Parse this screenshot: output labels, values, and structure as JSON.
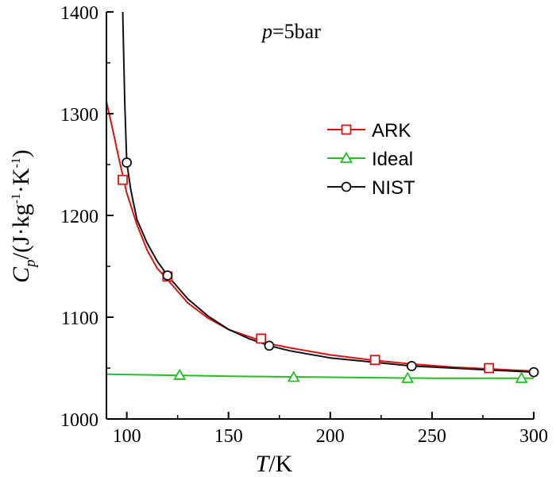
{
  "chart_data": {
    "type": "line",
    "annotation": {
      "italic": "p",
      "rest": "=5bar"
    },
    "xlabel": {
      "italic": "T",
      "rest": "/K"
    },
    "ylabel": {
      "c": "C",
      "sub": "p",
      "open": "/(J·kg",
      "exp1": "-1",
      "mid": "·K",
      "exp2": "-1",
      "close": ")"
    },
    "xlim": [
      90,
      300
    ],
    "ylim": [
      1000,
      1400
    ],
    "xticks": [
      100,
      150,
      200,
      250,
      300
    ],
    "yticks": [
      1000,
      1100,
      1200,
      1300,
      1400
    ],
    "series": [
      {
        "name": "ARK",
        "color": "#e01010",
        "marker": "square",
        "line": [
          [
            90,
            1312
          ],
          [
            93,
            1285
          ],
          [
            96,
            1257
          ],
          [
            100,
            1222
          ],
          [
            105,
            1191
          ],
          [
            110,
            1166
          ],
          [
            115,
            1148
          ],
          [
            120,
            1137
          ],
          [
            130,
            1114
          ],
          [
            140,
            1099
          ],
          [
            150,
            1088
          ],
          [
            160,
            1081
          ],
          [
            170,
            1074
          ],
          [
            180,
            1070
          ],
          [
            200,
            1063
          ],
          [
            220,
            1058
          ],
          [
            240,
            1054
          ],
          [
            260,
            1051
          ],
          [
            280,
            1049
          ],
          [
            300,
            1047
          ]
        ],
        "markers": [
          [
            98,
            1235
          ],
          [
            120,
            1140
          ],
          [
            166,
            1079
          ],
          [
            222,
            1058
          ],
          [
            278,
            1050
          ]
        ]
      },
      {
        "name": "Ideal",
        "color": "#22c022",
        "marker": "triangle",
        "line": [
          [
            90,
            1044
          ],
          [
            150,
            1042
          ],
          [
            200,
            1041
          ],
          [
            250,
            1040
          ],
          [
            300,
            1040
          ]
        ],
        "markers": [
          [
            126,
            1043
          ],
          [
            182,
            1041
          ],
          [
            238,
            1040
          ],
          [
            294,
            1040
          ]
        ]
      },
      {
        "name": "NIST",
        "color": "#111111",
        "marker": "circle",
        "line": [
          [
            98,
            1400
          ],
          [
            99,
            1310
          ],
          [
            100,
            1252
          ],
          [
            102,
            1225
          ],
          [
            105,
            1196
          ],
          [
            110,
            1173
          ],
          [
            115,
            1155
          ],
          [
            120,
            1141
          ],
          [
            130,
            1118
          ],
          [
            140,
            1101
          ],
          [
            150,
            1088
          ],
          [
            160,
            1079
          ],
          [
            170,
            1072
          ],
          [
            180,
            1067
          ],
          [
            200,
            1060
          ],
          [
            220,
            1056
          ],
          [
            240,
            1052
          ],
          [
            260,
            1050
          ],
          [
            280,
            1048
          ],
          [
            300,
            1046
          ]
        ],
        "markers": [
          [
            100,
            1252
          ],
          [
            120,
            1141
          ],
          [
            170,
            1072
          ],
          [
            240,
            1052
          ],
          [
            300,
            1046
          ]
        ]
      }
    ]
  }
}
